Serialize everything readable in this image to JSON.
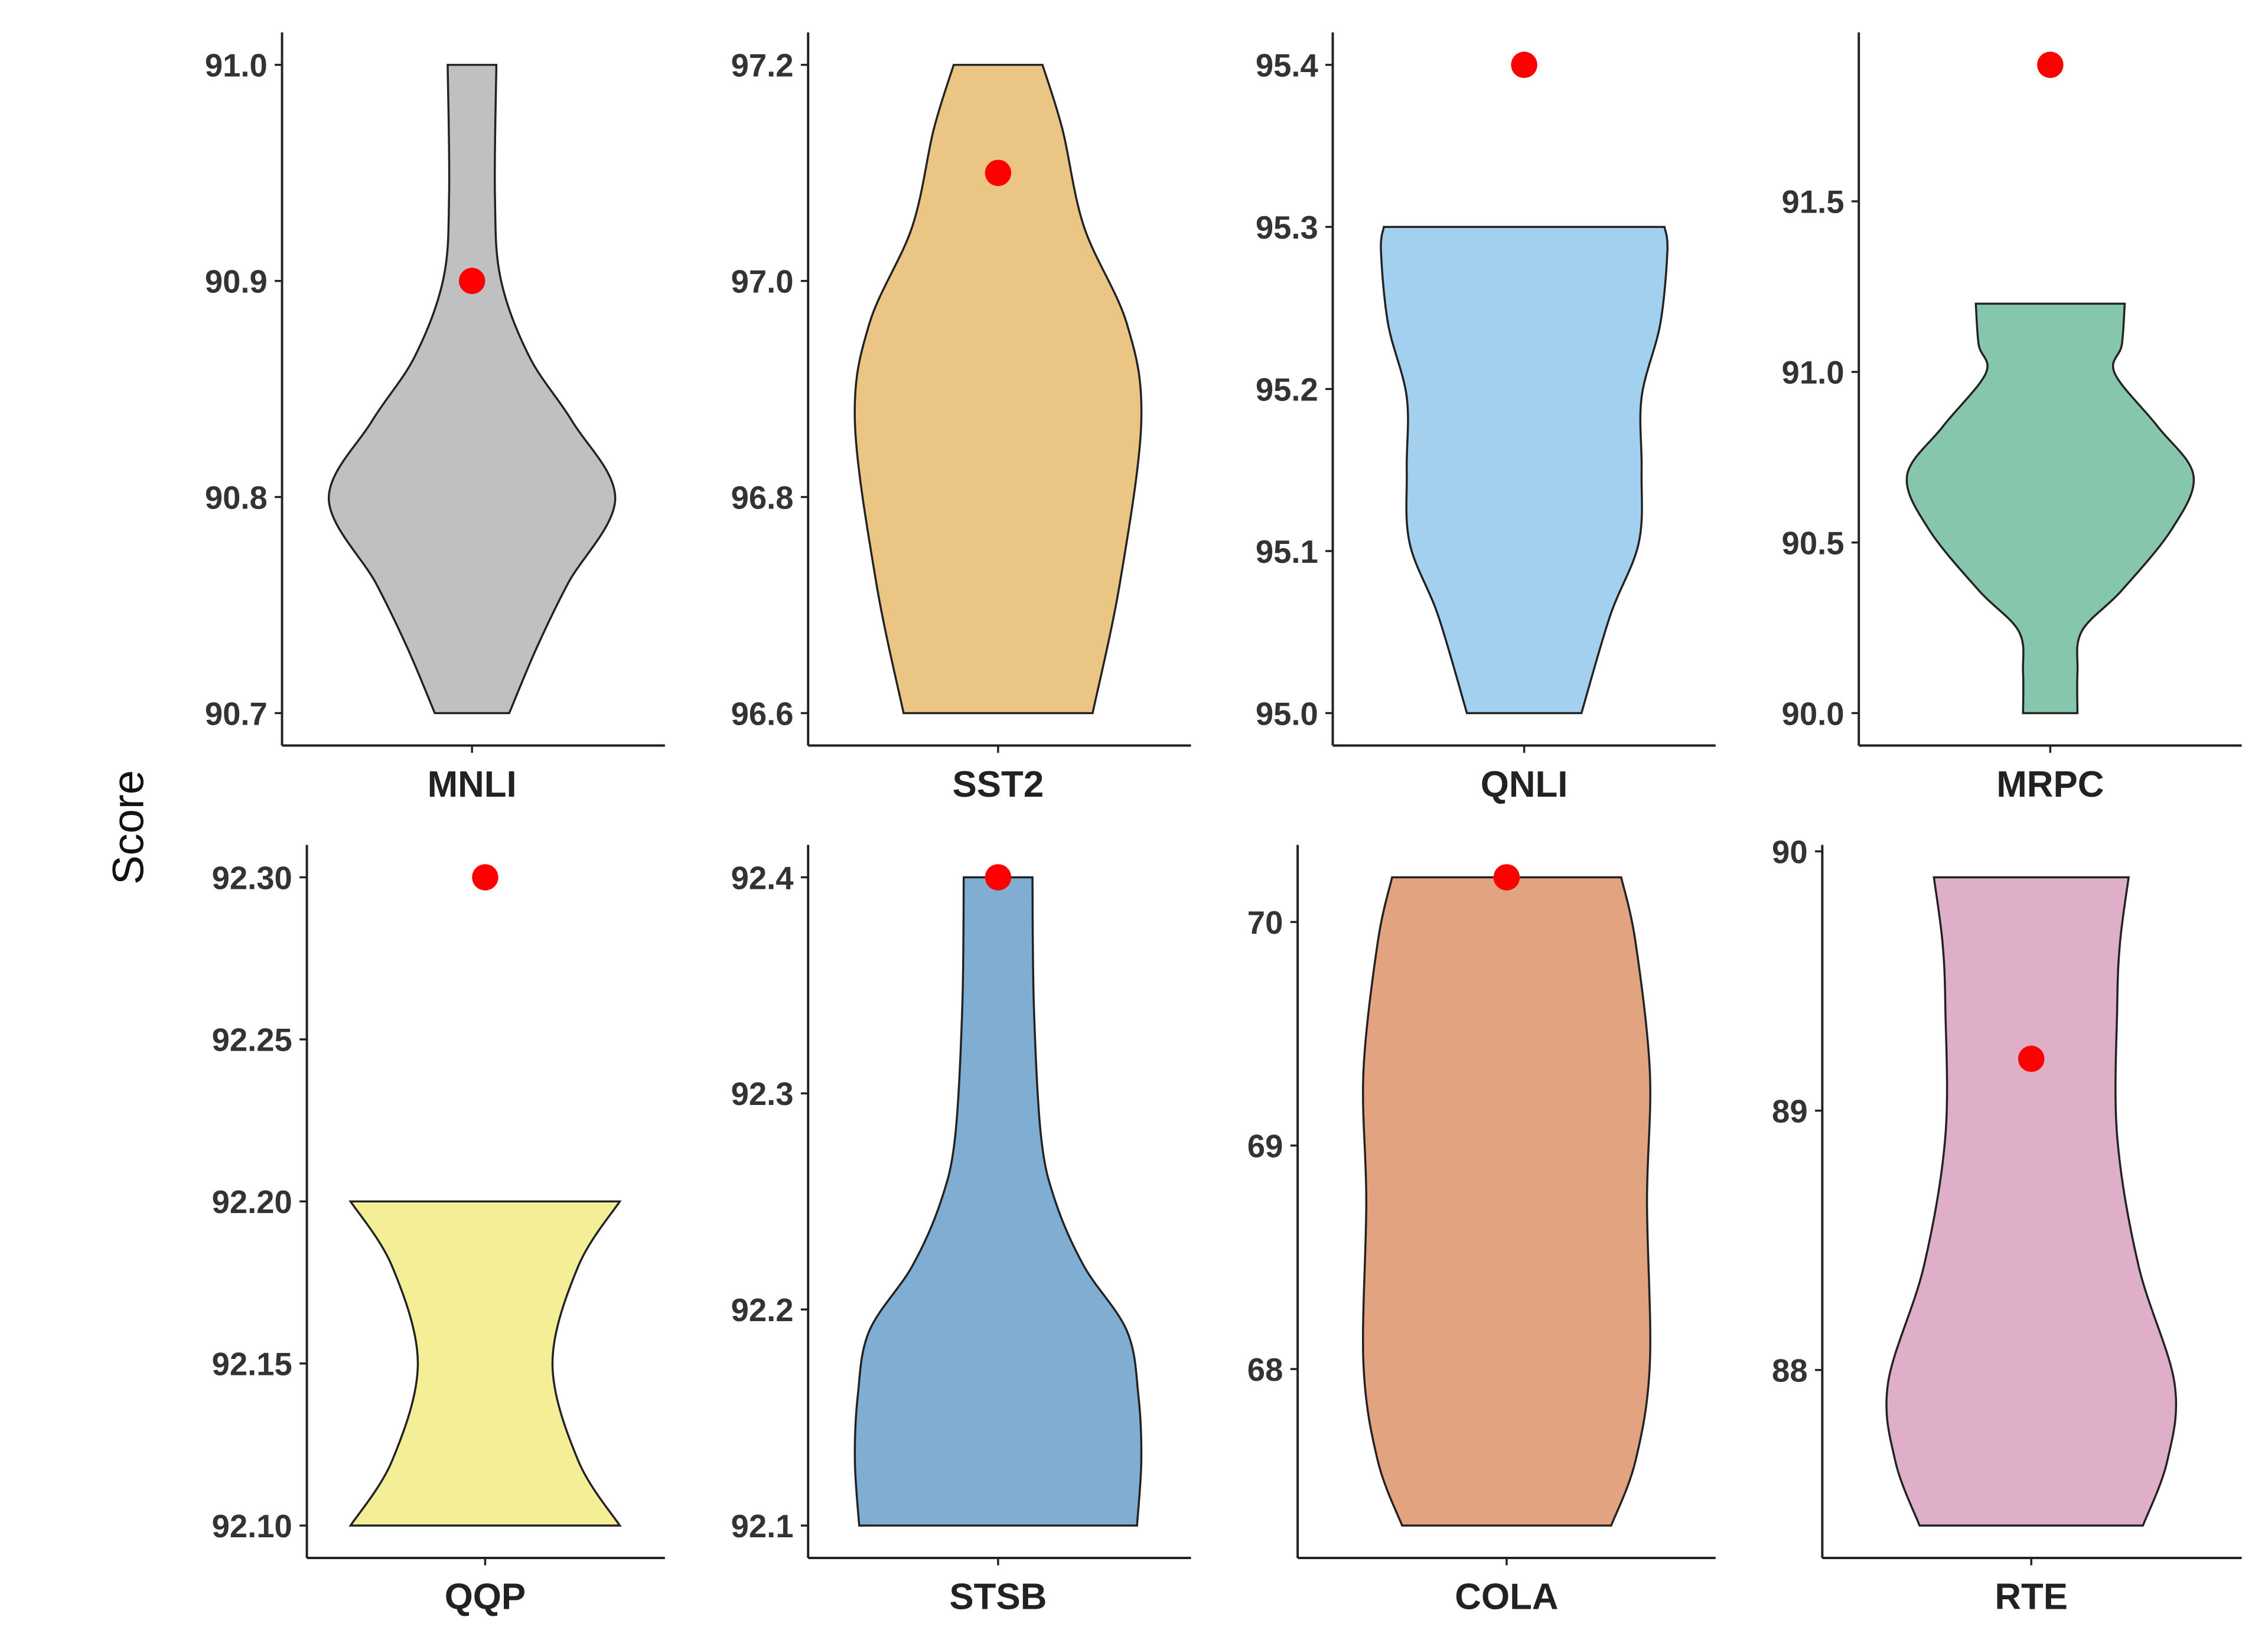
{
  "chart_data": {
    "type": "violin",
    "ylabel": "Score",
    "layout": "2x4 facets",
    "point_color": "#ff0000",
    "panels": [
      {
        "name": "MNLI",
        "color": "#c0c0c0",
        "min": 90.7,
        "max": 91.0,
        "point": 90.9,
        "ticks": [
          90.7,
          90.8,
          90.9,
          91.0
        ],
        "tick_labels": [
          "90.7",
          "90.8",
          "90.9",
          "91.0"
        ],
        "density": [
          [
            0,
            0.26
          ],
          [
            0.1,
            0.45
          ],
          [
            0.2,
            0.67
          ],
          [
            0.33,
            1.0
          ],
          [
            0.45,
            0.7
          ],
          [
            0.55,
            0.4
          ],
          [
            0.67,
            0.2
          ],
          [
            0.8,
            0.16
          ],
          [
            1,
            0.17
          ]
        ]
      },
      {
        "name": "SST2",
        "color": "#ebc583",
        "min": 96.6,
        "max": 97.2,
        "point": 97.1,
        "ticks": [
          96.6,
          96.8,
          97.0,
          97.2
        ],
        "tick_labels": [
          "96.6",
          "96.8",
          "97.0",
          "97.2"
        ],
        "density": [
          [
            0,
            0.66
          ],
          [
            0.2,
            0.85
          ],
          [
            0.45,
            1.0
          ],
          [
            0.6,
            0.9
          ],
          [
            0.75,
            0.6
          ],
          [
            0.9,
            0.45
          ],
          [
            1,
            0.31
          ]
        ]
      },
      {
        "name": "QNLI",
        "color": "#a3d0ee",
        "min": 95.0,
        "max": 95.3,
        "point": 95.4,
        "ticks": [
          95.0,
          95.1,
          95.2,
          95.3,
          95.4
        ],
        "tick_labels": [
          "95.0",
          "95.1",
          "95.2",
          "95.3",
          "95.4"
        ],
        "density": [
          [
            0,
            0.4
          ],
          [
            0.2,
            0.6
          ],
          [
            0.35,
            0.8
          ],
          [
            0.5,
            0.82
          ],
          [
            0.65,
            0.82
          ],
          [
            0.8,
            0.95
          ],
          [
            0.95,
            1.0
          ],
          [
            1,
            0.98
          ]
        ]
      },
      {
        "name": "MRPC",
        "color": "#86c6ac",
        "min": 90.0,
        "max": 91.2,
        "point": 91.9,
        "ticks": [
          90.0,
          90.5,
          91.0,
          91.5
        ],
        "tick_labels": [
          "90.0",
          "90.5",
          "91.0",
          "91.5"
        ],
        "density": [
          [
            0,
            0.19
          ],
          [
            0.1,
            0.19
          ],
          [
            0.2,
            0.22
          ],
          [
            0.3,
            0.5
          ],
          [
            0.45,
            0.85
          ],
          [
            0.58,
            1.0
          ],
          [
            0.7,
            0.75
          ],
          [
            0.83,
            0.45
          ],
          [
            0.9,
            0.5
          ],
          [
            1,
            0.52
          ]
        ]
      },
      {
        "name": "QQP",
        "color": "#f4ef97",
        "min": 92.1,
        "max": 92.2,
        "point": 92.3,
        "ticks": [
          92.1,
          92.15,
          92.2,
          92.25,
          92.3
        ],
        "tick_labels": [
          "92.10",
          "92.15",
          "92.20",
          "92.25",
          "92.30"
        ],
        "density": [
          [
            0,
            0.94
          ],
          [
            0.2,
            0.65
          ],
          [
            0.5,
            0.47
          ],
          [
            0.8,
            0.65
          ],
          [
            1,
            0.94
          ]
        ]
      },
      {
        "name": "STSB",
        "color": "#80aed2",
        "min": 92.1,
        "max": 92.4,
        "point": 92.4,
        "ticks": [
          92.1,
          92.2,
          92.3,
          92.4
        ],
        "tick_labels": [
          "92.1",
          "92.2",
          "92.3",
          "92.4"
        ],
        "density": [
          [
            0,
            0.97
          ],
          [
            0.1,
            1.0
          ],
          [
            0.2,
            0.98
          ],
          [
            0.3,
            0.9
          ],
          [
            0.4,
            0.6
          ],
          [
            0.5,
            0.4
          ],
          [
            0.6,
            0.3
          ],
          [
            0.8,
            0.25
          ],
          [
            1,
            0.24
          ]
        ]
      },
      {
        "name": "COLA",
        "color": "#e2a380",
        "min": 67.3,
        "max": 70.2,
        "point": 70.2,
        "ticks": [
          68,
          69,
          70
        ],
        "tick_labels": [
          "68",
          "69",
          "70"
        ],
        "density": [
          [
            0,
            0.73
          ],
          [
            0.1,
            0.9
          ],
          [
            0.25,
            1.0
          ],
          [
            0.5,
            0.98
          ],
          [
            0.7,
            1.0
          ],
          [
            0.9,
            0.9
          ],
          [
            1,
            0.8
          ]
        ]
      },
      {
        "name": "RTE",
        "color": "#dfafca",
        "min": 87.4,
        "max": 89.9,
        "point": 89.2,
        "ticks": [
          88,
          89,
          90
        ],
        "tick_labels": [
          "88",
          "89",
          "90"
        ],
        "density": [
          [
            0,
            0.78
          ],
          [
            0.1,
            0.95
          ],
          [
            0.22,
            1.0
          ],
          [
            0.4,
            0.75
          ],
          [
            0.6,
            0.6
          ],
          [
            0.8,
            0.6
          ],
          [
            0.9,
            0.62
          ],
          [
            1,
            0.68
          ]
        ]
      }
    ]
  }
}
